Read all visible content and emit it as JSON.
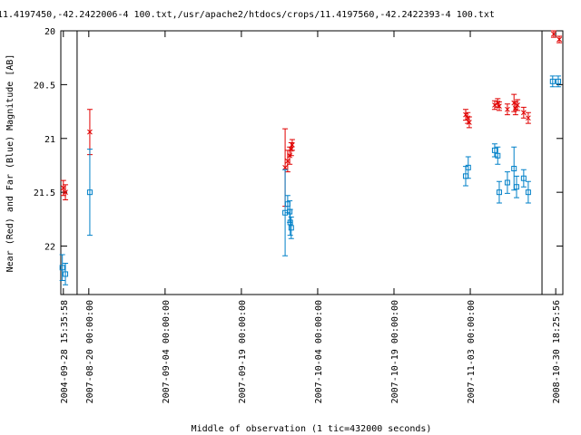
{
  "chart_data": {
    "type": "scatter",
    "title": "11.4197450,-42.2422006-4 100.txt,/usr/apache2/htdocs/crops/11.4197560,-42.2422393-4 100.txt",
    "x_label": "Middle of observation (1 tic=432000 seconds)",
    "y_label": "Near (Red) and Far (Blue) Magnitude [AB]",
    "xlim": [
      -5.5,
      93.2
    ],
    "ylim": [
      20,
      22.45
    ],
    "y_inverted": true,
    "xbreaks": [
      -2.3,
      89.1
    ],
    "xticks": [
      {
        "value": -5,
        "label": "2004-09-28 15:35:58"
      },
      {
        "value": 0,
        "label": "2007-08-20 00:00:00"
      },
      {
        "value": 15,
        "label": "2007-09-04 00:00:00"
      },
      {
        "value": 30,
        "label": "2007-09-19 00:00:00"
      },
      {
        "value": 45,
        "label": "2007-10-04 00:00:00"
      },
      {
        "value": 60,
        "label": "2007-10-19 00:00:00"
      },
      {
        "value": 75,
        "label": "2007-11-03 00:00:00"
      },
      {
        "value": 91.8,
        "label": "2008-10-30 18:25:56"
      }
    ],
    "yticks": [
      20,
      20.5,
      21,
      21.5,
      22
    ],
    "series": [
      {
        "color": "#e00000",
        "marker": "x",
        "x": [
          -5,
          -4.6,
          0.2,
          38.6,
          39.1,
          39.5,
          39.8,
          40.0,
          74.1,
          74.5,
          74.8,
          79.8,
          80.4,
          80.7,
          82.3,
          83.6,
          83.9,
          84.3,
          85.5,
          86.4,
          91.4,
          92.5
        ],
        "values": [
          21.46,
          21.5,
          20.94,
          21.27,
          21.21,
          21.16,
          21.1,
          21.06,
          20.78,
          20.81,
          20.85,
          20.69,
          20.67,
          20.7,
          20.73,
          20.67,
          20.72,
          20.69,
          20.76,
          20.81,
          20.03,
          20.08
        ],
        "errors": [
          0.07,
          0.07,
          0.21,
          0.36,
          0.1,
          0.08,
          0.06,
          0.05,
          0.05,
          0.05,
          0.05,
          0.04,
          0.04,
          0.04,
          0.05,
          0.08,
          0.06,
          0.05,
          0.05,
          0.05,
          0.03,
          0.03
        ]
      },
      {
        "color": "#0080c8",
        "marker": "square",
        "x": [
          -5.2,
          -4.6,
          0.2,
          38.6,
          39.1,
          39.5,
          39.6,
          39.8,
          74.1,
          74.6,
          79.8,
          80.4,
          80.7,
          82.3,
          83.6,
          84.1,
          85.5,
          86.4,
          91.2,
          92.3
        ],
        "values": [
          22.2,
          22.26,
          21.5,
          21.69,
          21.61,
          21.68,
          21.78,
          21.83,
          21.35,
          21.27,
          21.11,
          21.16,
          21.5,
          21.41,
          21.28,
          21.45,
          21.37,
          21.5,
          20.47,
          20.47
        ],
        "errors": [
          0.12,
          0.1,
          0.4,
          0.4,
          0.08,
          0.1,
          0.12,
          0.1,
          0.09,
          0.1,
          0.06,
          0.08,
          0.1,
          0.1,
          0.2,
          0.1,
          0.08,
          0.1,
          0.05,
          0.05
        ]
      }
    ]
  }
}
